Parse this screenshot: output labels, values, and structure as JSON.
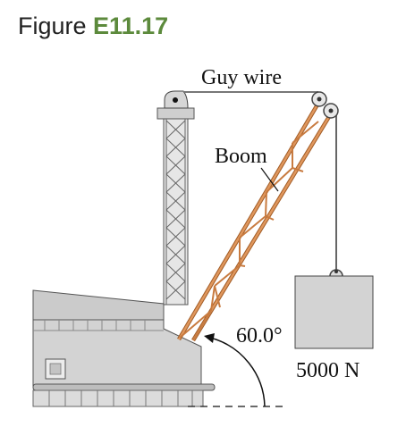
{
  "figure": {
    "label_prefix": "Figure",
    "label_number": "E11.17"
  },
  "diagram": {
    "guy_wire_label": "Guy wire",
    "boom_label": "Boom",
    "angle_label": "60.0°",
    "weight_label": "5000 N",
    "colors": {
      "boom": "#d58a4f",
      "tower": "#d9d9d9",
      "block": "#d0d0d0",
      "building": "#cfcfcf",
      "figure_number": "#5c8a3c"
    }
  }
}
